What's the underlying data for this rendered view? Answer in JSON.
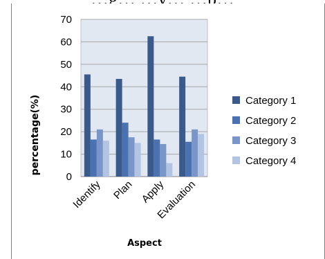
{
  "page": {
    "title_fragment": "…g… …y… …p…"
  },
  "chart_data": {
    "type": "bar",
    "title": "",
    "xlabel": "Aspect",
    "ylabel": "percentage(%)",
    "ylim": [
      0,
      70
    ],
    "yticks": [
      0,
      10,
      20,
      30,
      40,
      50,
      60,
      70
    ],
    "grid": true,
    "legend_position": "right",
    "categories": [
      "Identify",
      "Plan",
      "Apply",
      "Evaluation"
    ],
    "series": [
      {
        "name": "Category 1",
        "color": "#3a5a8c",
        "values": [
          45.5,
          43.5,
          62.5,
          44.5
        ]
      },
      {
        "name": "Category 2",
        "color": "#4a72b0",
        "values": [
          16.5,
          24,
          16.5,
          15.5
        ]
      },
      {
        "name": "Category 3",
        "color": "#7a96c8",
        "values": [
          21,
          17.5,
          14.5,
          21
        ]
      },
      {
        "name": "Category 4",
        "color": "#b2c4e2",
        "values": [
          16,
          15,
          6,
          19
        ]
      }
    ]
  }
}
